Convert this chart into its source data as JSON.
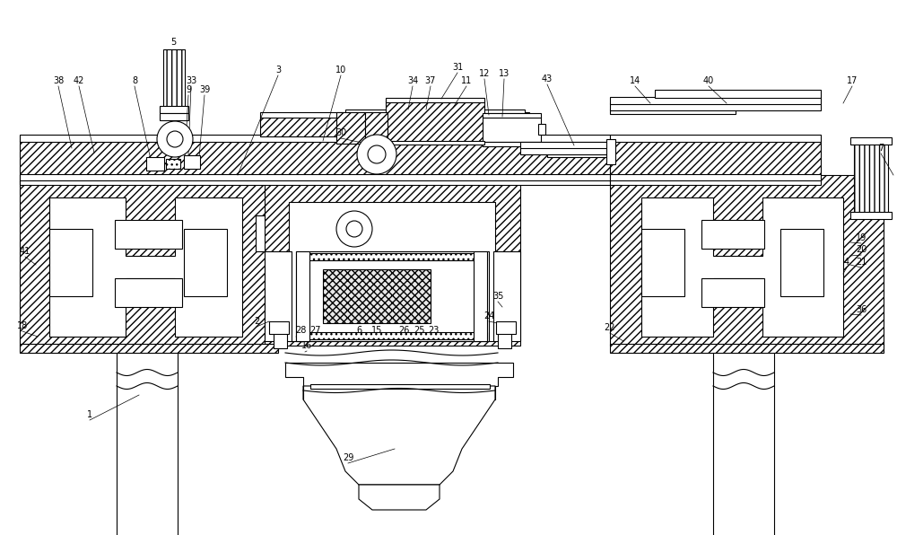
{
  "bg": "#ffffff",
  "lc": "#000000",
  "lw": 0.8,
  "fig_w": 10.0,
  "fig_h": 5.96,
  "label_fs": 7.0
}
